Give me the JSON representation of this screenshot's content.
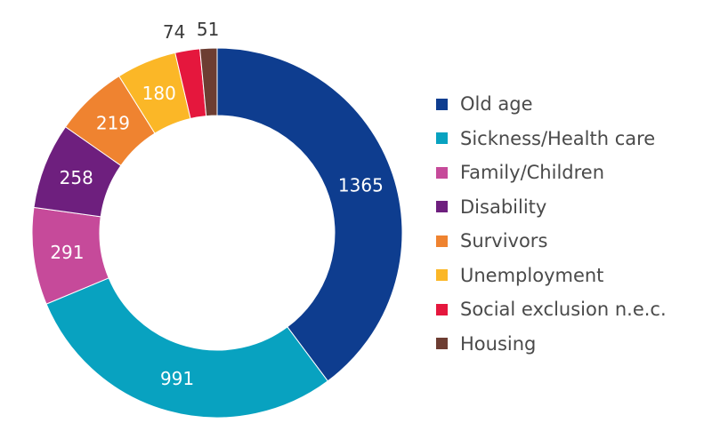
{
  "chart_data": {
    "type": "pie",
    "donut": true,
    "title": "",
    "categories": [
      "Old age",
      "Sickness/Health care",
      "Family/Children",
      "Disability",
      "Survivors",
      "Unemployment",
      "Social exclusion n.e.c.",
      "Housing"
    ],
    "values": [
      1365,
      991,
      291,
      258,
      219,
      180,
      74,
      51
    ],
    "colors": [
      "#0e3d8f",
      "#08a2c0",
      "#c64a9a",
      "#6e1f7e",
      "#ef8330",
      "#fbb727",
      "#e5173d",
      "#6d3d32"
    ],
    "legend_position": "right",
    "value_label_colors": [
      "#ffffff",
      "#ffffff",
      "#ffffff",
      "#ffffff",
      "#ffffff",
      "#ffffff",
      "#3a3a3a",
      "#3a3a3a"
    ]
  }
}
